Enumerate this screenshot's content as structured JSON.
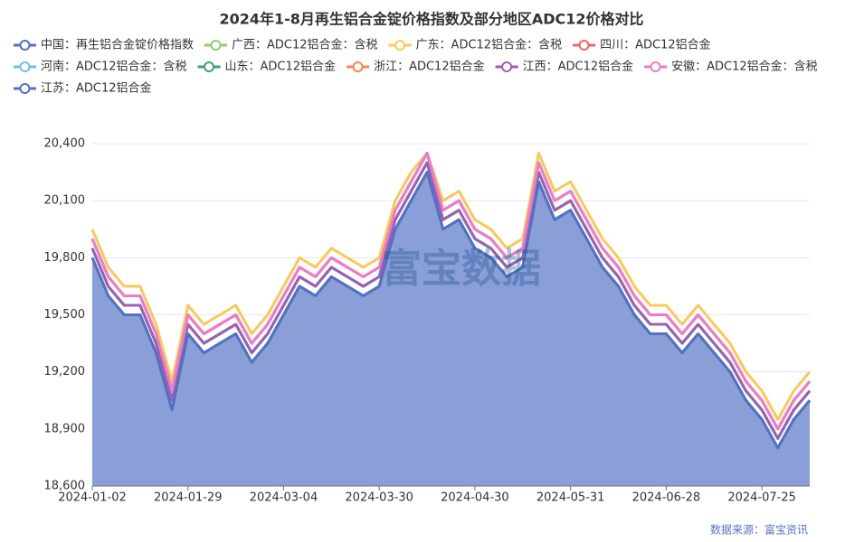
{
  "chart_data": {
    "type": "line",
    "title": "2024年1-8月再生铝合金锭价格指数及部分地区ADC12价格对比",
    "watermark": "富宝数据",
    "source": "数据来源：富宝资讯",
    "categories": [
      "2024-01-02",
      null,
      null,
      null,
      null,
      null,
      "2024-01-29",
      null,
      null,
      null,
      null,
      null,
      "2024-03-04",
      null,
      null,
      null,
      null,
      null,
      "2024-03-30",
      null,
      null,
      null,
      null,
      null,
      "2024-04-30",
      null,
      null,
      null,
      null,
      null,
      "2024-05-31",
      null,
      null,
      null,
      null,
      null,
      "2024-06-28",
      null,
      null,
      null,
      null,
      null,
      "2024-07-25",
      null,
      null,
      null
    ],
    "ylim": [
      18600,
      20400
    ],
    "yticks": [
      {
        "value": 18600,
        "label": "18,600"
      },
      {
        "value": 18900,
        "label": "18,900"
      },
      {
        "value": 19200,
        "label": "19,200"
      },
      {
        "value": 19500,
        "label": "19,500"
      },
      {
        "value": 19800,
        "label": "19,800"
      },
      {
        "value": 20100,
        "label": "20,100"
      },
      {
        "value": 20400,
        "label": "20,400"
      }
    ],
    "grid": true,
    "series": [
      {
        "name": "中国：再生铝合金锭价格指数",
        "color": "#5470c6",
        "values": [
          19850,
          19650,
          19550,
          19550,
          19350,
          19050,
          19450,
          19350,
          19400,
          19450,
          19300,
          19400,
          19550,
          19700,
          19650,
          19750,
          19700,
          19650,
          19700,
          20000,
          20150,
          20300,
          20000,
          20050,
          19900,
          19850,
          19750,
          19800,
          20250,
          20050,
          20100,
          19950,
          19800,
          19700,
          19550,
          19450,
          19450,
          19350,
          19450,
          19350,
          19250,
          19100,
          19000,
          18850,
          19000,
          19100
        ]
      },
      {
        "name": "广西：ADC12铝合金：含税",
        "color": "#91cc75",
        "values": [
          19800,
          19600,
          19500,
          19500,
          19300,
          19000,
          19400,
          19300,
          19350,
          19400,
          19250,
          19350,
          19500,
          19650,
          19600,
          19700,
          19650,
          19600,
          19650,
          19950,
          20100,
          20250,
          19950,
          20000,
          19850,
          19800,
          19700,
          19750,
          20200,
          20000,
          20050,
          19900,
          19750,
          19650,
          19500,
          19400,
          19400,
          19300,
          19400,
          19300,
          19200,
          19050,
          18950,
          18800,
          18950,
          19050
        ]
      },
      {
        "name": "广东：ADC12铝合金：含税",
        "color": "#fac858",
        "values": [
          19950,
          19750,
          19650,
          19650,
          19450,
          19150,
          19550,
          19450,
          19500,
          19550,
          19400,
          19500,
          19650,
          19800,
          19750,
          19850,
          19800,
          19750,
          19800,
          20100,
          20250,
          20350,
          20100,
          20150,
          20000,
          19950,
          19850,
          19900,
          20350,
          20150,
          20200,
          20050,
          19900,
          19800,
          19650,
          19550,
          19550,
          19450,
          19550,
          19450,
          19350,
          19200,
          19100,
          18950,
          19100,
          19200
        ]
      },
      {
        "name": "四川：ADC12铝合金",
        "color": "#ee6666",
        "values": [
          19900,
          19700,
          19600,
          19600,
          19400,
          19100,
          19500,
          19400,
          19450,
          19500,
          19350,
          19450,
          19600,
          19750,
          19700,
          19800,
          19750,
          19700,
          19750,
          20050,
          20200,
          20350,
          20050,
          20100,
          19950,
          19900,
          19800,
          19850,
          20300,
          20100,
          20150,
          20000,
          19850,
          19750,
          19600,
          19500,
          19500,
          19400,
          19500,
          19400,
          19300,
          19150,
          19050,
          18900,
          19050,
          19150
        ]
      },
      {
        "name": "河南：ADC12铝合金：含税",
        "color": "#73c0de",
        "values": [
          19850,
          19650,
          19550,
          19550,
          19350,
          19050,
          19450,
          19350,
          19400,
          19450,
          19300,
          19400,
          19550,
          19700,
          19650,
          19750,
          19700,
          19650,
          19700,
          20000,
          20150,
          20300,
          20000,
          20050,
          19900,
          19850,
          19750,
          19800,
          20250,
          20050,
          20100,
          19950,
          19800,
          19700,
          19550,
          19450,
          19450,
          19350,
          19450,
          19350,
          19250,
          19100,
          19000,
          18850,
          19000,
          19100
        ]
      },
      {
        "name": "山东：ADC12铝合金",
        "color": "#3ba272",
        "values": [
          19800,
          19600,
          19500,
          19500,
          19300,
          19000,
          19400,
          19300,
          19350,
          19400,
          19250,
          19350,
          19500,
          19650,
          19600,
          19700,
          19650,
          19600,
          19650,
          19950,
          20100,
          20250,
          19950,
          20000,
          19850,
          19800,
          19700,
          19750,
          20200,
          20000,
          20050,
          19900,
          19750,
          19650,
          19500,
          19400,
          19400,
          19300,
          19400,
          19300,
          19200,
          19050,
          18950,
          18800,
          18950,
          19050
        ]
      },
      {
        "name": "浙江：ADC12铝合金",
        "color": "#fc8452",
        "values": [
          19900,
          19700,
          19600,
          19600,
          19400,
          19100,
          19500,
          19400,
          19450,
          19500,
          19350,
          19450,
          19600,
          19750,
          19700,
          19800,
          19750,
          19700,
          19750,
          20050,
          20200,
          20350,
          20050,
          20100,
          19950,
          19900,
          19800,
          19850,
          20300,
          20100,
          20150,
          20000,
          19850,
          19750,
          19600,
          19500,
          19500,
          19400,
          19500,
          19400,
          19300,
          19150,
          19050,
          18900,
          19050,
          19150
        ]
      },
      {
        "name": "江西：ADC12铝合金",
        "color": "#9a60b4",
        "values": [
          19850,
          19650,
          19550,
          19550,
          19350,
          19050,
          19450,
          19350,
          19400,
          19450,
          19300,
          19400,
          19550,
          19700,
          19650,
          19750,
          19700,
          19650,
          19700,
          20000,
          20150,
          20300,
          20000,
          20050,
          19900,
          19850,
          19750,
          19800,
          20250,
          20050,
          20100,
          19950,
          19800,
          19700,
          19550,
          19450,
          19450,
          19350,
          19450,
          19350,
          19250,
          19100,
          19000,
          18850,
          19000,
          19100
        ]
      },
      {
        "name": "安徽：ADC12铝合金：含税",
        "color": "#ea7ccc",
        "values": [
          19900,
          19700,
          19600,
          19600,
          19400,
          19100,
          19500,
          19400,
          19450,
          19500,
          19350,
          19450,
          19600,
          19750,
          19700,
          19800,
          19750,
          19700,
          19750,
          20050,
          20200,
          20350,
          20050,
          20100,
          19950,
          19900,
          19800,
          19850,
          20300,
          20100,
          20150,
          20000,
          19850,
          19750,
          19600,
          19500,
          19500,
          19400,
          19500,
          19400,
          19300,
          19150,
          19050,
          18900,
          19050,
          19150
        ]
      },
      {
        "name": "江苏：ADC12铝合金",
        "color": "#5470c6",
        "area": true,
        "area_color": "#8a9fd8",
        "values": [
          19800,
          19600,
          19500,
          19500,
          19300,
          19000,
          19400,
          19300,
          19350,
          19400,
          19250,
          19350,
          19500,
          19650,
          19600,
          19700,
          19650,
          19600,
          19650,
          19950,
          20100,
          20250,
          19950,
          20000,
          19850,
          19800,
          19700,
          19750,
          20200,
          20000,
          20050,
          19900,
          19750,
          19650,
          19500,
          19400,
          19400,
          19300,
          19400,
          19300,
          19200,
          19050,
          18950,
          18800,
          18950,
          19050
        ]
      }
    ]
  }
}
